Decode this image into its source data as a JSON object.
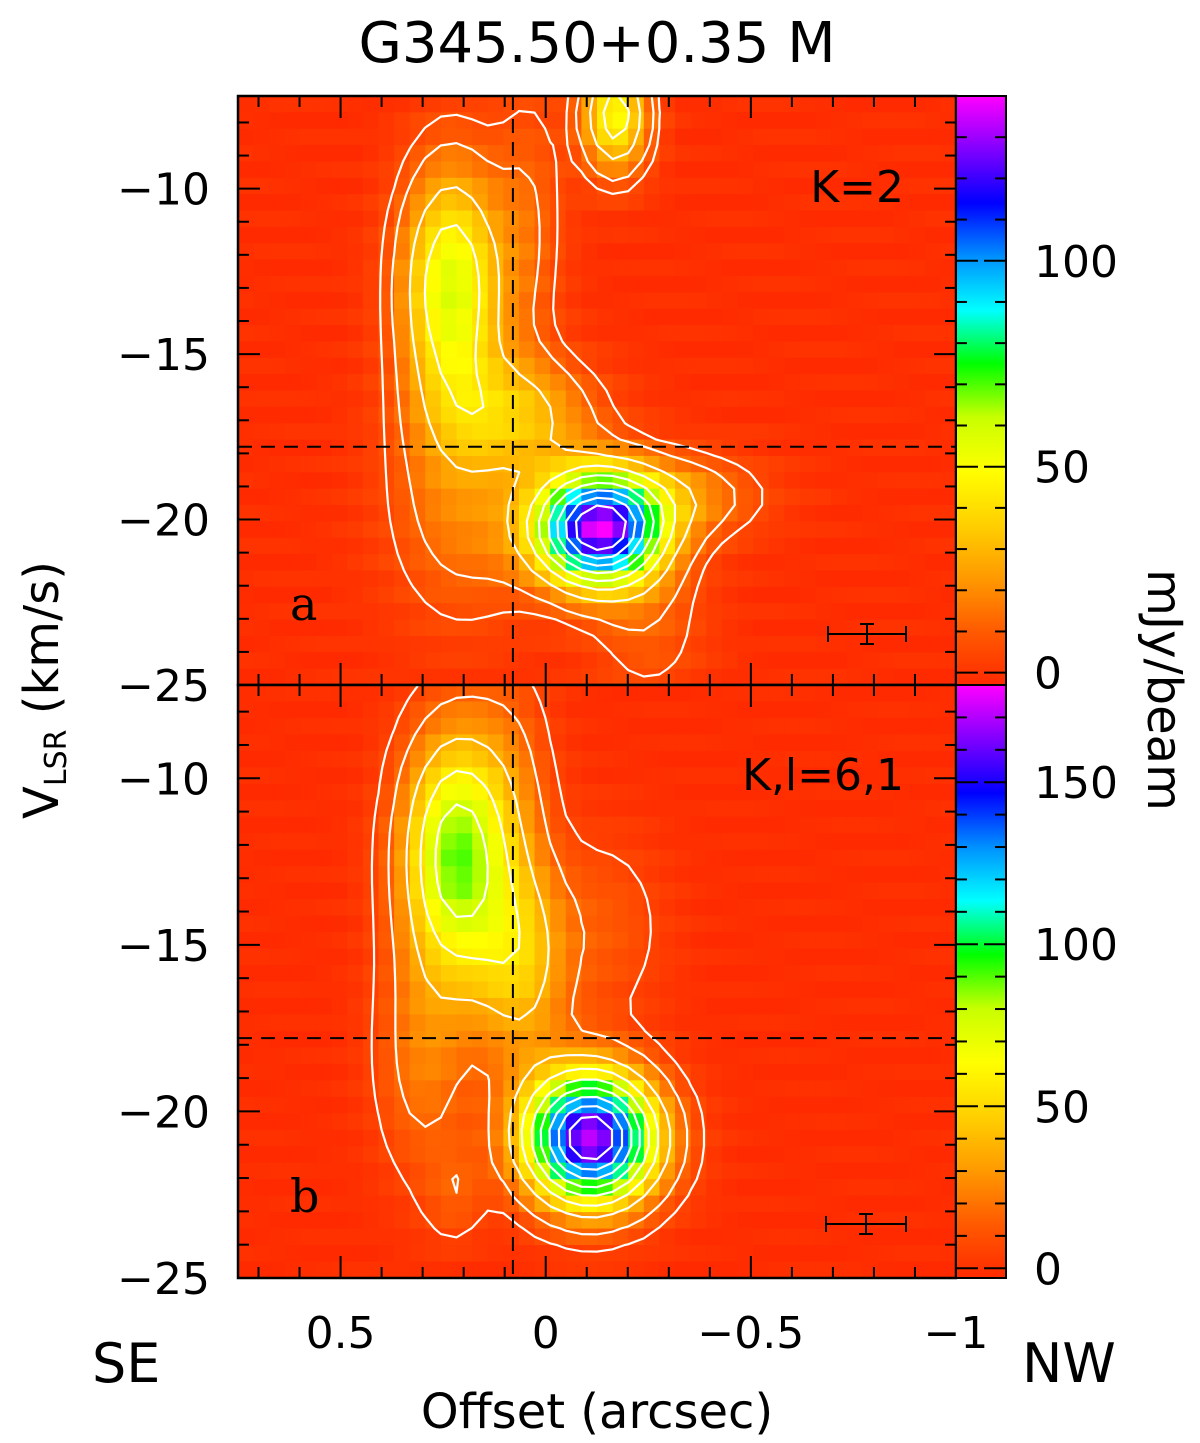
{
  "title": "G345.50+0.35 M",
  "x_axis_label": "Offset (arcsec)",
  "y_axis_label_main": "V",
  "y_axis_label_sub": "LSR",
  "y_axis_label_unit": " (km/s)",
  "colorbar_label": "mJy/beam",
  "direction_left": "SE",
  "direction_right": "NW",
  "colors": {
    "colormap": [
      "#ff2a00",
      "#ff5a00",
      "#ff9a00",
      "#ffd000",
      "#ffff00",
      "#c8ff00",
      "#00ff00",
      "#00ffff",
      "#0090ff",
      "#0000ff",
      "#8000ff",
      "#ff00ff"
    ],
    "contour": "#ffffff",
    "dashed": "#000000"
  },
  "chart_data": [
    {
      "type": "heatmap",
      "panel_label": "a",
      "transition_label": "K=2",
      "x_ticks": [
        "0.5",
        "0",
        "−0.5",
        "−1"
      ],
      "x_tick_values": [
        0.5,
        0,
        -0.5,
        -1
      ],
      "y_ticks": [
        "−10",
        "−15",
        "−20",
        "−25"
      ],
      "y_tick_values": [
        -10,
        -15,
        -20,
        -25
      ],
      "xlim": [
        0.75,
        -1.0
      ],
      "ylim": [
        -25,
        -7.2
      ],
      "colorbar_ticks": [
        "0",
        "50",
        "100"
      ],
      "colorbar_tick_values": [
        0,
        50,
        100
      ],
      "colorbar_range": [
        -3,
        140
      ],
      "dashed_x": 0.08,
      "dashed_y": -17.8,
      "emission_peaks": [
        {
          "x": 0.23,
          "y": -13.0,
          "peak": 60
        },
        {
          "x": -0.13,
          "y": -20.3,
          "peak": 140
        },
        {
          "x": -0.17,
          "y": -8.0,
          "peak": 55
        }
      ]
    },
    {
      "type": "heatmap",
      "panel_label": "b",
      "transition_label": "K,l=6,1",
      "x_ticks": [
        "0.5",
        "0",
        "−0.5",
        "−1"
      ],
      "x_tick_values": [
        0.5,
        0,
        -0.5,
        -1
      ],
      "y_ticks": [
        "−10",
        "−15",
        "−20",
        "−25"
      ],
      "y_tick_values": [
        -10,
        -15,
        -20,
        -25
      ],
      "xlim": [
        0.75,
        -1.0
      ],
      "ylim": [
        -25,
        -7.2
      ],
      "colorbar_ticks": [
        "0",
        "50",
        "100",
        "150"
      ],
      "colorbar_tick_values": [
        0,
        50,
        100,
        150
      ],
      "colorbar_range": [
        -3,
        180
      ],
      "dashed_x": 0.08,
      "dashed_y": -17.8,
      "emission_peaks": [
        {
          "x": 0.22,
          "y": -12.2,
          "peak": 90
        },
        {
          "x": -0.11,
          "y": -20.8,
          "peak": 180
        }
      ]
    }
  ]
}
